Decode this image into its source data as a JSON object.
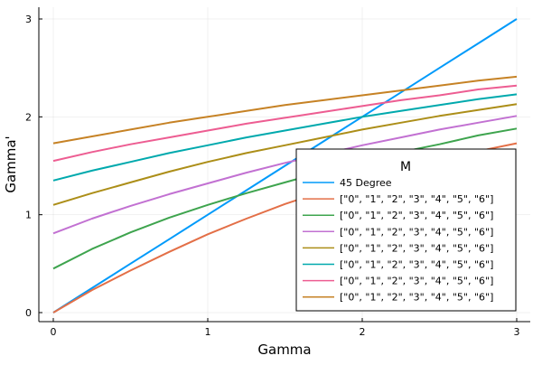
{
  "chart_data": {
    "type": "line",
    "title": "",
    "xlabel": "Gamma",
    "ylabel": "Gamma'",
    "xlim": [
      0,
      3
    ],
    "ylim": [
      0,
      3
    ],
    "xticks": [
      0,
      1,
      2,
      3
    ],
    "yticks": [
      0,
      1,
      2,
      3
    ],
    "grid": true,
    "legend": {
      "title": "M",
      "placement": "bottom-right"
    },
    "x": [
      0,
      0.25,
      0.5,
      0.75,
      1.0,
      1.25,
      1.5,
      1.75,
      2.0,
      2.25,
      2.5,
      2.75,
      3.0
    ],
    "series": [
      {
        "name": "45 Degree",
        "color": "#009AFA",
        "values": [
          0,
          0.25,
          0.5,
          0.75,
          1.0,
          1.25,
          1.5,
          1.75,
          2.0,
          2.25,
          2.5,
          2.75,
          3.0
        ]
      },
      {
        "name": "[\"0\", \"1\", \"2\", \"3\", \"4\", \"5\", \"6\"]",
        "color": "#E36F47",
        "values": [
          0.0,
          0.23,
          0.43,
          0.62,
          0.8,
          0.96,
          1.11,
          1.24,
          1.36,
          1.46,
          1.56,
          1.65,
          1.73
        ]
      },
      {
        "name": "[\"0\", \"1\", \"2\", \"3\", \"4\", \"5\", \"6\"]",
        "color": "#3EA44E",
        "values": [
          0.45,
          0.65,
          0.82,
          0.97,
          1.1,
          1.22,
          1.33,
          1.44,
          1.54,
          1.64,
          1.72,
          1.81,
          1.88
        ]
      },
      {
        "name": "[\"0\", \"1\", \"2\", \"3\", \"4\", \"5\", \"6\"]",
        "color": "#C271D2",
        "values": [
          0.81,
          0.96,
          1.09,
          1.21,
          1.32,
          1.43,
          1.53,
          1.62,
          1.71,
          1.79,
          1.87,
          1.94,
          2.01
        ]
      },
      {
        "name": "[\"0\", \"1\", \"2\", \"3\", \"4\", \"5\", \"6\"]",
        "color": "#AC8E18",
        "values": [
          1.1,
          1.22,
          1.33,
          1.44,
          1.54,
          1.63,
          1.71,
          1.79,
          1.87,
          1.94,
          2.01,
          2.07,
          2.13
        ]
      },
      {
        "name": "[\"0\", \"1\", \"2\", \"3\", \"4\", \"5\", \"6\"]",
        "color": "#00A9AD",
        "values": [
          1.35,
          1.45,
          1.54,
          1.63,
          1.71,
          1.79,
          1.86,
          1.93,
          2.0,
          2.06,
          2.12,
          2.18,
          2.23
        ]
      },
      {
        "name": "[\"0\", \"1\", \"2\", \"3\", \"4\", \"5\", \"6\"]",
        "color": "#ED5D92",
        "values": [
          1.55,
          1.64,
          1.72,
          1.79,
          1.86,
          1.93,
          1.99,
          2.05,
          2.11,
          2.17,
          2.22,
          2.28,
          2.32
        ]
      },
      {
        "name": "[\"0\", \"1\", \"2\", \"3\", \"4\", \"5\", \"6\"]",
        "color": "#C68225",
        "values": [
          1.73,
          1.8,
          1.87,
          1.94,
          2.0,
          2.06,
          2.12,
          2.17,
          2.22,
          2.27,
          2.32,
          2.37,
          2.41
        ]
      }
    ]
  }
}
